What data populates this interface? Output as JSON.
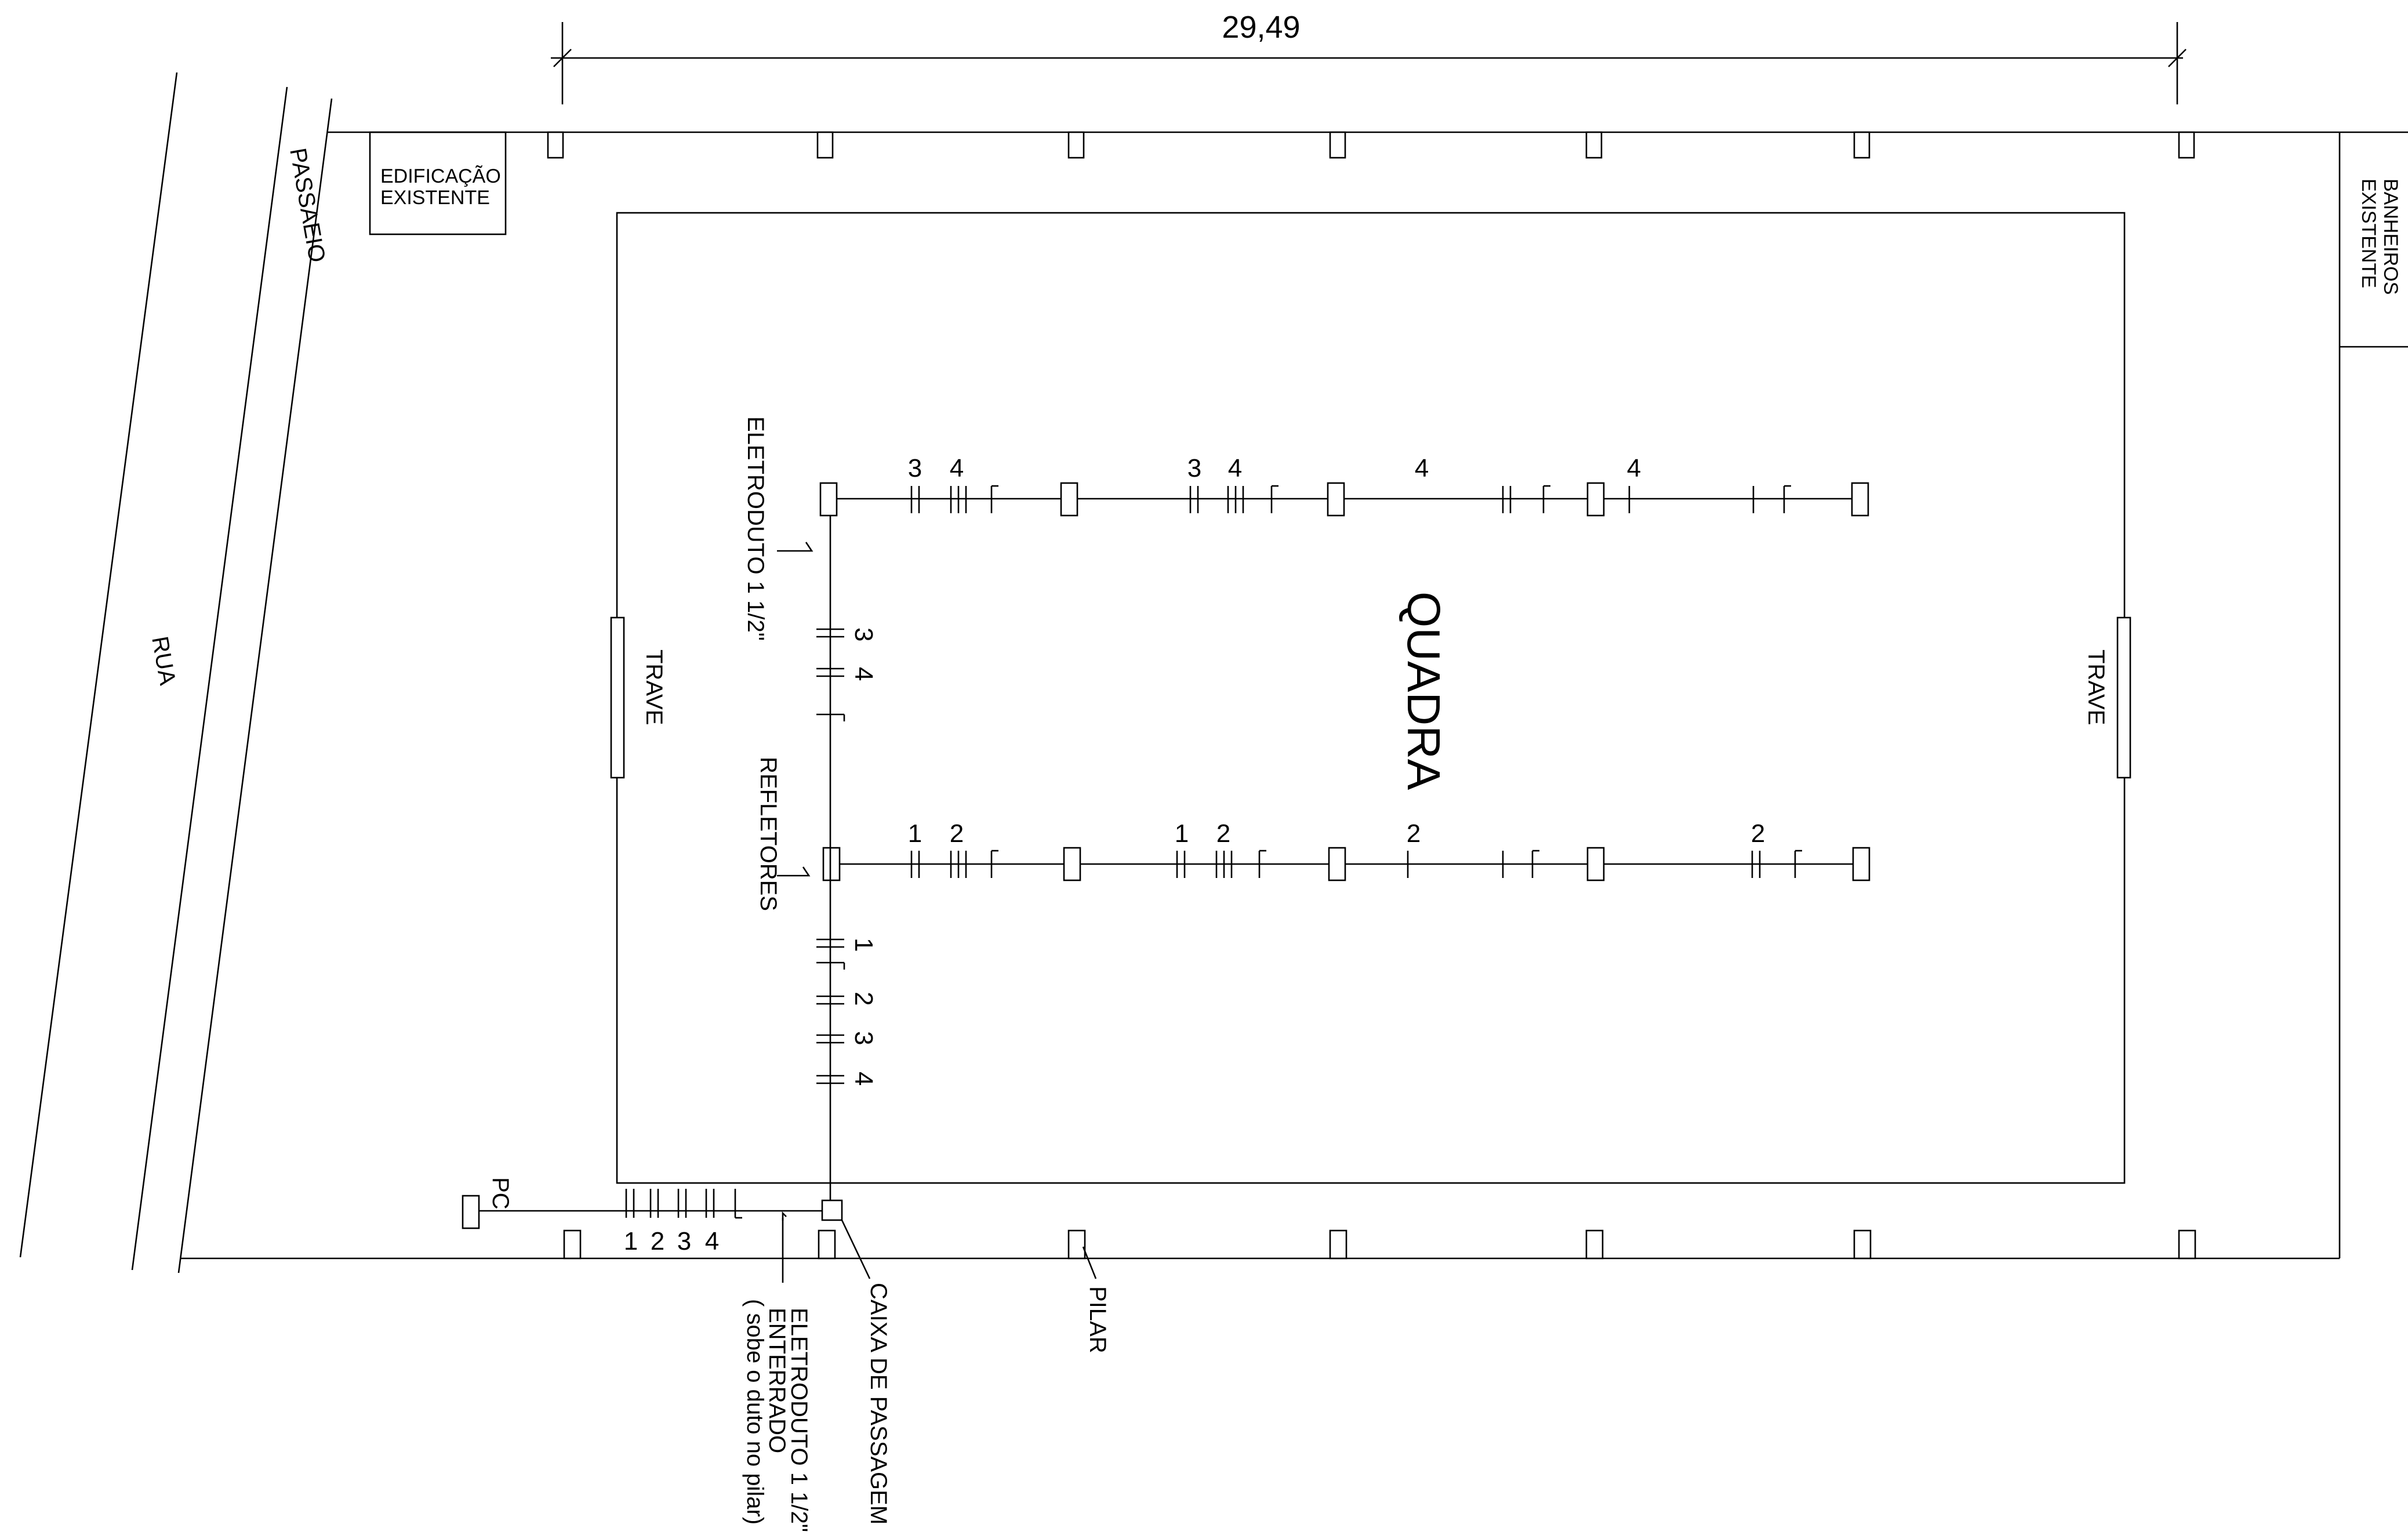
{
  "labels": {
    "dimension": "29,49",
    "quadra": "QUADRA",
    "rua": "RUA",
    "passaeio": "PASSAEIO",
    "edificacao_line1": "EDIFICAÇÃO",
    "edificacao_line2": "EXISTENTE",
    "banheiros_line1": "BANHEIROS",
    "banheiros_line2": "EXISTENTE",
    "trave": "TRAVE",
    "eletroduto_upper": "ELETRODUTO  1 1/2\"",
    "refletores": "REFLETORES",
    "pc": "PC",
    "eletroduto_lower_line1": "ELETRODUTO 1 1/2\"",
    "eletroduto_lower_line2": "ENTERRADO",
    "eletroduto_lower_line3": "( sobe o duto no pilar)",
    "caixa_passagem": "CAIXA DE PASSAGEM",
    "pilar": "PILAR"
  },
  "circuits": {
    "top_row": [
      "3",
      "4",
      "3",
      "4",
      "4",
      "4"
    ],
    "bottom_row": [
      "1",
      "2",
      "1",
      "2",
      "2",
      "2"
    ],
    "vertical_upper": [
      "3",
      "4"
    ],
    "vertical_lower": [
      "1",
      "2",
      "3",
      "4"
    ],
    "horizontal_feed": [
      "1",
      "2",
      "3",
      "4"
    ]
  }
}
